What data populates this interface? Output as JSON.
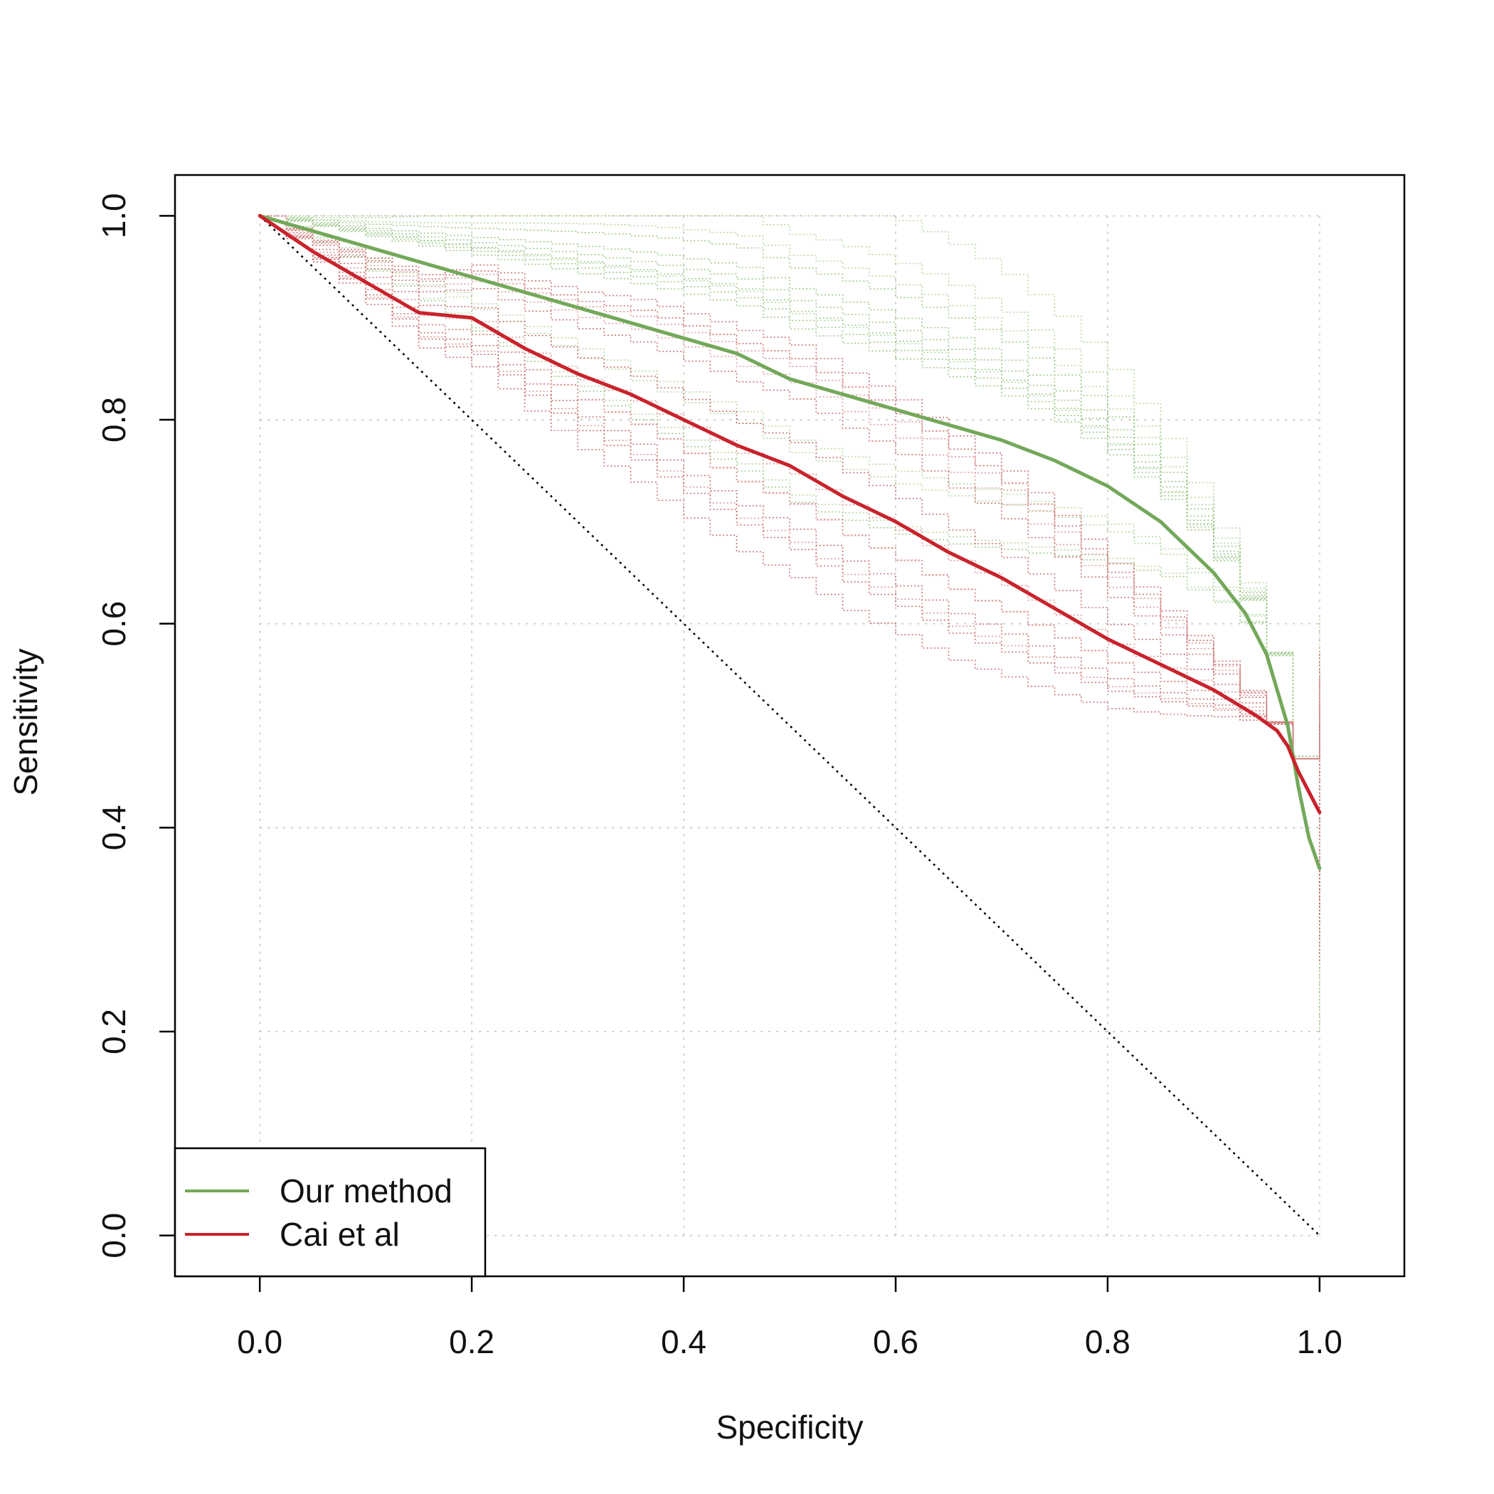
{
  "chart_data": {
    "type": "line",
    "xlabel": "Specificity",
    "ylabel": "Sensitivity",
    "xlim": [
      -0.08,
      1.08
    ],
    "ylim": [
      -0.04,
      1.04
    ],
    "x_ticks": [
      "0.0",
      "0.2",
      "0.4",
      "0.6",
      "0.8",
      "1.0"
    ],
    "y_ticks": [
      "0.0",
      "0.2",
      "0.4",
      "0.6",
      "0.8",
      "1.0"
    ],
    "grid": true,
    "legend_position": "bottom-left",
    "series": [
      {
        "name": "Our method",
        "color": "#73a85a",
        "x": [
          0.0,
          0.05,
          0.1,
          0.15,
          0.2,
          0.25,
          0.3,
          0.35,
          0.4,
          0.45,
          0.5,
          0.55,
          0.6,
          0.65,
          0.7,
          0.75,
          0.8,
          0.85,
          0.9,
          0.93,
          0.95,
          0.97,
          0.98,
          0.99,
          1.0
        ],
        "y": [
          1.0,
          0.985,
          0.97,
          0.955,
          0.94,
          0.925,
          0.91,
          0.895,
          0.88,
          0.865,
          0.84,
          0.825,
          0.81,
          0.795,
          0.78,
          0.76,
          0.735,
          0.7,
          0.65,
          0.61,
          0.57,
          0.5,
          0.44,
          0.39,
          0.36
        ]
      },
      {
        "name": "Cai et al",
        "color": "#c8232c",
        "x": [
          0.0,
          0.05,
          0.1,
          0.15,
          0.2,
          0.25,
          0.3,
          0.35,
          0.4,
          0.45,
          0.5,
          0.55,
          0.6,
          0.65,
          0.7,
          0.75,
          0.8,
          0.85,
          0.9,
          0.94,
          0.96,
          0.97,
          0.98,
          0.99,
          1.0
        ],
        "y": [
          1.0,
          0.965,
          0.935,
          0.905,
          0.9,
          0.87,
          0.845,
          0.825,
          0.8,
          0.775,
          0.755,
          0.725,
          0.7,
          0.67,
          0.645,
          0.615,
          0.585,
          0.56,
          0.535,
          0.51,
          0.495,
          0.48,
          0.455,
          0.435,
          0.415
        ]
      }
    ]
  }
}
